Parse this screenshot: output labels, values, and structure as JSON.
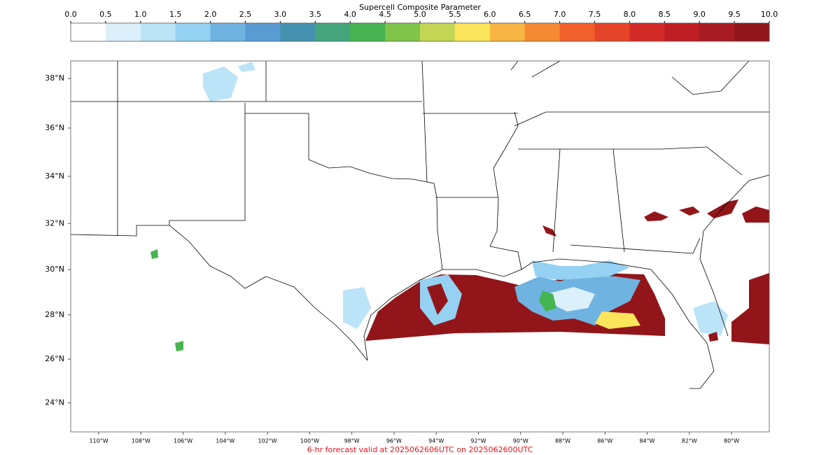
{
  "colorbar": {
    "title": "Supercell Composite Parameter",
    "ticks": [
      {
        "value": 0,
        "label": "0.0"
      },
      {
        "value": 0.5,
        "label": "0.5"
      },
      {
        "value": 1,
        "label": "1.0"
      },
      {
        "value": 1.5,
        "label": "1.5"
      },
      {
        "value": 2,
        "label": "2.0"
      },
      {
        "value": 2.5,
        "label": "2.5"
      },
      {
        "value": 3,
        "label": "3.0"
      },
      {
        "value": 3.5,
        "label": "3.5"
      },
      {
        "value": 4,
        "label": "4.0"
      },
      {
        "value": 4.5,
        "label": "4.5"
      },
      {
        "value": 5,
        "label": "5.0"
      },
      {
        "value": 5.5,
        "label": "5.5"
      },
      {
        "value": 6,
        "label": "6.0"
      },
      {
        "value": 6.5,
        "label": "6.5"
      },
      {
        "value": 7,
        "label": "7.0"
      },
      {
        "value": 7.5,
        "label": "7.5"
      },
      {
        "value": 8,
        "label": "8.0"
      },
      {
        "value": 8.5,
        "label": "8.5"
      },
      {
        "value": 9,
        "label": "9.0"
      },
      {
        "value": 9.5,
        "label": "9.5"
      },
      {
        "value": 10,
        "label": "10.0"
      }
    ],
    "colors": [
      "#ffffff",
      "#dcf0fb",
      "#bce4f8",
      "#94d1f2",
      "#6fb3e0",
      "#5a9bd4",
      "#4592b0",
      "#44a57c",
      "#46b450",
      "#80c44a",
      "#c2d654",
      "#fbe55a",
      "#f8b544",
      "#f68a33",
      "#f15f2a",
      "#e54429",
      "#d42a28",
      "#bf1e25",
      "#a81b21",
      "#921519"
    ]
  },
  "map": {
    "latlim": [
      22.65,
      38.7
    ],
    "lonlim": [
      -111.33,
      -78.21
    ],
    "lat_ticks": [
      {
        "value": 24,
        "label": "24°N"
      },
      {
        "value": 26,
        "label": "26°N"
      },
      {
        "value": 28,
        "label": "28°N"
      },
      {
        "value": 30,
        "label": "30°N"
      },
      {
        "value": 32,
        "label": "32°N"
      },
      {
        "value": 34,
        "label": "34°N"
      },
      {
        "value": 36,
        "label": "36°N"
      },
      {
        "value": 38,
        "label": "38°N"
      }
    ],
    "lon_ticks": [
      {
        "value": -110,
        "label": "110°W"
      },
      {
        "value": -108,
        "label": "108°W"
      },
      {
        "value": -106,
        "label": "106°W"
      },
      {
        "value": -104,
        "label": "104°W"
      },
      {
        "value": -102,
        "label": "102°W"
      },
      {
        "value": -100,
        "label": "100°W"
      },
      {
        "value": -98,
        "label": "98°W"
      },
      {
        "value": -96,
        "label": "96°W"
      },
      {
        "value": -94,
        "label": "94°W"
      },
      {
        "value": -92,
        "label": "92°W"
      },
      {
        "value": -90,
        "label": "90°W"
      },
      {
        "value": -88,
        "label": "88°W"
      },
      {
        "value": -86,
        "label": "86°W"
      },
      {
        "value": -84,
        "label": "84°W"
      },
      {
        "value": -82,
        "label": "82°W"
      },
      {
        "value": -80,
        "label": "80°W"
      }
    ]
  },
  "footer": "6-hr forecast valid at 2025062606UTC on 2025062600UTC"
}
